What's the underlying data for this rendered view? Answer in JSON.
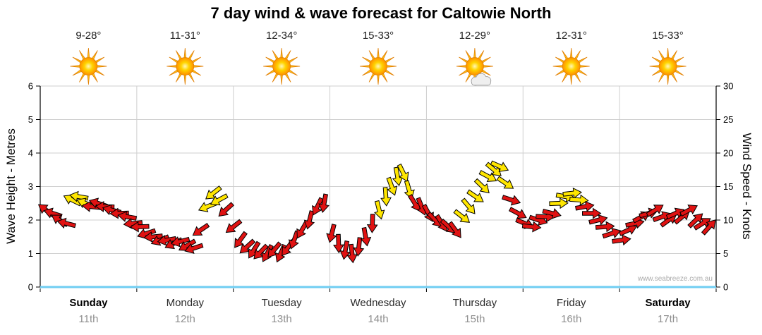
{
  "watermark": "www.seabreeze.com.au",
  "days": [
    {
      "name": "Sunday",
      "date": "11th",
      "temp": "9-28°",
      "icon": "sunny",
      "bold": true
    },
    {
      "name": "Monday",
      "date": "12th",
      "temp": "11-31°",
      "icon": "sunny",
      "bold": false
    },
    {
      "name": "Tuesday",
      "date": "13th",
      "temp": "12-34°",
      "icon": "sunny",
      "bold": false
    },
    {
      "name": "Wednesday",
      "date": "14th",
      "temp": "15-33°",
      "icon": "sunny",
      "bold": false
    },
    {
      "name": "Thursday",
      "date": "15th",
      "temp": "12-29°",
      "icon": "partly-cloudy",
      "bold": false
    },
    {
      "name": "Friday",
      "date": "16th",
      "temp": "12-31°",
      "icon": "sunny",
      "bold": false
    },
    {
      "name": "Saturday",
      "date": "17th",
      "temp": "15-33°",
      "icon": "sunny",
      "bold": true
    }
  ],
  "colors": {
    "arrow_red": "#e01212",
    "arrow_yellow": "#ffe600",
    "grid": "#cfcfcf",
    "axis": "#000000",
    "baseline_blue": "#6fcdf2",
    "sun_ray": "#fdb913",
    "sun_ray_edge": "#e07d00",
    "cloud_fill": "#efefef",
    "cloud_edge": "#8a8a8a"
  },
  "chart_data": {
    "type": "scatter",
    "subtype": "wind-direction-arrow-forecast",
    "title": "7 day wind & wave forecast for Caltowie North",
    "xlabel": "",
    "ylabel_left": "Wave Height - Metres",
    "ylabel_right": "Wind Speed - Knots",
    "ylim_left": [
      0,
      6
    ],
    "ylim_right": [
      0,
      30
    ],
    "yticks_left": [
      0,
      1,
      2,
      3,
      4,
      5,
      6
    ],
    "yticks_right": [
      0,
      5,
      10,
      15,
      20,
      25,
      30
    ],
    "grid": true,
    "categories": [
      "Sunday",
      "Monday",
      "Tuesday",
      "Wednesday",
      "Thursday",
      "Friday",
      "Saturday"
    ],
    "dates": [
      "11th",
      "12th",
      "13th",
      "14th",
      "15th",
      "16th",
      "17th"
    ],
    "temps": [
      "9-28°",
      "11-31°",
      "12-34°",
      "15-33°",
      "12-29°",
      "12-31°",
      "15-33°"
    ],
    "icons": [
      "sunny",
      "sunny",
      "sunny",
      "sunny",
      "partly-cloudy",
      "sunny",
      "sunny"
    ],
    "point_format": [
      "day_position_0_to_7",
      "wind_speed_knots",
      "arrow_rotation_deg_cw_from_east",
      "color r=red y=yellow"
    ],
    "points": [
      [
        0.06,
        11.5,
        216,
        "r"
      ],
      [
        0.13,
        11,
        198,
        "r"
      ],
      [
        0.2,
        10,
        212,
        "r"
      ],
      [
        0.27,
        9.5,
        194,
        "r"
      ],
      [
        0.33,
        13,
        206,
        "y"
      ],
      [
        0.4,
        13.5,
        190,
        "y"
      ],
      [
        0.47,
        12.5,
        202,
        "y"
      ],
      [
        0.53,
        12,
        186,
        "r"
      ],
      [
        0.6,
        12.5,
        198,
        "r"
      ],
      [
        0.67,
        12,
        182,
        "r"
      ],
      [
        0.74,
        11.5,
        194,
        "r"
      ],
      [
        0.82,
        11,
        178,
        "r"
      ],
      [
        0.9,
        10.5,
        190,
        "r"
      ],
      [
        0.96,
        9.5,
        174,
        "r"
      ],
      [
        1.03,
        9,
        178,
        "r"
      ],
      [
        1.1,
        8,
        162,
        "r"
      ],
      [
        1.17,
        7.5,
        174,
        "r"
      ],
      [
        1.24,
        7,
        158,
        "r"
      ],
      [
        1.31,
        7,
        170,
        "r"
      ],
      [
        1.38,
        6.5,
        154,
        "r"
      ],
      [
        1.45,
        6.8,
        166,
        "r"
      ],
      [
        1.52,
        6.2,
        150,
        "r"
      ],
      [
        1.59,
        5.8,
        162,
        "r"
      ],
      [
        1.66,
        8.5,
        146,
        "r"
      ],
      [
        1.73,
        12,
        158,
        "y"
      ],
      [
        1.79,
        14,
        142,
        "y"
      ],
      [
        1.85,
        13,
        152,
        "y"
      ],
      [
        1.92,
        11.5,
        138,
        "r"
      ],
      [
        2,
        9,
        142,
        "r"
      ],
      [
        2.07,
        7,
        126,
        "r"
      ],
      [
        2.14,
        6,
        138,
        "r"
      ],
      [
        2.21,
        5.5,
        122,
        "r"
      ],
      [
        2.28,
        5.2,
        134,
        "r"
      ],
      [
        2.35,
        5,
        118,
        "r"
      ],
      [
        2.42,
        5.5,
        130,
        "r"
      ],
      [
        2.49,
        5,
        114,
        "r"
      ],
      [
        2.56,
        5.8,
        126,
        "r"
      ],
      [
        2.63,
        7,
        110,
        "r"
      ],
      [
        2.71,
        8.5,
        120,
        "r"
      ],
      [
        2.79,
        10,
        104,
        "r"
      ],
      [
        2.87,
        12,
        116,
        "r"
      ],
      [
        2.94,
        12.5,
        100,
        "r"
      ],
      [
        3.02,
        8,
        104,
        "r"
      ],
      [
        3.09,
        6.5,
        88,
        "r"
      ],
      [
        3.16,
        5.5,
        100,
        "r"
      ],
      [
        3.23,
        5,
        84,
        "r"
      ],
      [
        3.3,
        6,
        96,
        "r"
      ],
      [
        3.37,
        7.5,
        80,
        "r"
      ],
      [
        3.44,
        9.5,
        92,
        "r"
      ],
      [
        3.51,
        11.5,
        76,
        "y"
      ],
      [
        3.58,
        13.5,
        86,
        "y"
      ],
      [
        3.64,
        15,
        70,
        "y"
      ],
      [
        3.7,
        16.5,
        80,
        "y"
      ],
      [
        3.76,
        17,
        64,
        "y"
      ],
      [
        3.82,
        14.5,
        74,
        "y"
      ],
      [
        3.88,
        12.5,
        58,
        "r"
      ],
      [
        3.95,
        12,
        68,
        "r"
      ],
      [
        4.02,
        11,
        62,
        "r"
      ],
      [
        4.09,
        10,
        46,
        "r"
      ],
      [
        4.16,
        9.5,
        58,
        "r"
      ],
      [
        4.23,
        9,
        42,
        "r"
      ],
      [
        4.3,
        8.5,
        54,
        "r"
      ],
      [
        4.37,
        10.5,
        38,
        "y"
      ],
      [
        4.44,
        12,
        50,
        "y"
      ],
      [
        4.51,
        13.5,
        34,
        "y"
      ],
      [
        4.58,
        15,
        44,
        "y"
      ],
      [
        4.64,
        16.5,
        28,
        "y"
      ],
      [
        4.7,
        17.5,
        40,
        "y"
      ],
      [
        4.76,
        18,
        24,
        "y"
      ],
      [
        4.82,
        15.5,
        34,
        "y"
      ],
      [
        4.88,
        13,
        18,
        "r"
      ],
      [
        4.95,
        11,
        28,
        "r"
      ],
      [
        5.02,
        9.5,
        22,
        "r"
      ],
      [
        5.09,
        9,
        6,
        "r"
      ],
      [
        5.16,
        10,
        18,
        "r"
      ],
      [
        5.23,
        10.5,
        2,
        "r"
      ],
      [
        5.3,
        11,
        14,
        "r"
      ],
      [
        5.37,
        12.5,
        -2,
        "y"
      ],
      [
        5.44,
        13.5,
        10,
        "y"
      ],
      [
        5.51,
        14,
        -6,
        "y"
      ],
      [
        5.58,
        13,
        4,
        "y"
      ],
      [
        5.64,
        12,
        -10,
        "r"
      ],
      [
        5.71,
        11,
        0,
        "r"
      ],
      [
        5.78,
        10,
        -14,
        "r"
      ],
      [
        5.85,
        9,
        -4,
        "r"
      ],
      [
        5.92,
        8,
        -18,
        "r"
      ],
      [
        6.02,
        7,
        -8,
        "r"
      ],
      [
        6.09,
        8.5,
        -24,
        "r"
      ],
      [
        6.16,
        9.5,
        -12,
        "r"
      ],
      [
        6.23,
        10.5,
        -28,
        "r"
      ],
      [
        6.3,
        11,
        -16,
        "r"
      ],
      [
        6.37,
        11.5,
        -32,
        "r"
      ],
      [
        6.44,
        10.5,
        -20,
        "r"
      ],
      [
        6.51,
        10,
        -36,
        "r"
      ],
      [
        6.58,
        11,
        -24,
        "r"
      ],
      [
        6.65,
        10.5,
        -40,
        "r"
      ],
      [
        6.72,
        11.5,
        -28,
        "r"
      ],
      [
        6.79,
        10,
        -44,
        "r"
      ],
      [
        6.86,
        9.5,
        -32,
        "r"
      ],
      [
        6.93,
        9,
        -48,
        "r"
      ]
    ]
  }
}
